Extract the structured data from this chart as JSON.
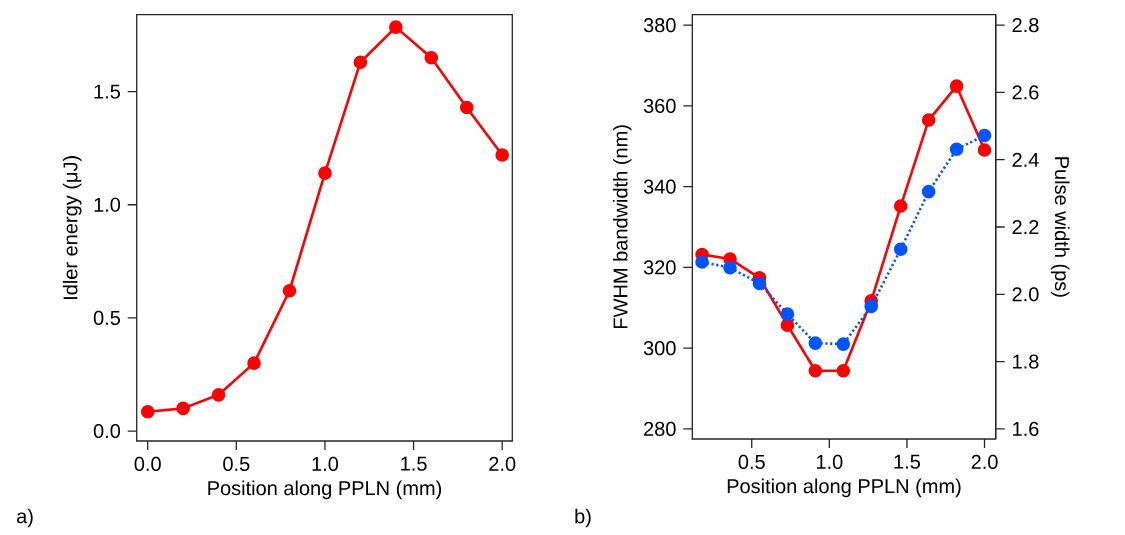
{
  "chart_data": [
    {
      "type": "line",
      "xlabel": "Position along PPLN (mm)",
      "ylabel": "Idler energy (μJ)",
      "marker": "circle",
      "line_style": "solid",
      "x": [
        0.0,
        0.2,
        0.4,
        0.6,
        0.8,
        1.0,
        1.2,
        1.4,
        1.6,
        1.8,
        2.0
      ],
      "series": [
        {
          "color": "#ff0000",
          "values": [
            0.085,
            0.1,
            0.16,
            0.3,
            0.62,
            1.14,
            1.63,
            1.785,
            1.65,
            1.43,
            1.22
          ]
        }
      ],
      "xlim": [
        -0.062,
        2.057
      ],
      "ylim": [
        -0.044,
        1.84
      ],
      "xticks": [
        {
          "value": 0,
          "label": "0.0"
        },
        {
          "value": 0.5,
          "label": "0.5"
        },
        {
          "value": 1,
          "label": "1.0"
        },
        {
          "value": 1.5,
          "label": "1.5"
        },
        {
          "value": 2,
          "label": "2.0"
        }
      ],
      "yticks": [
        {
          "value": 0,
          "label": "0.0"
        },
        {
          "value": 0.5,
          "label": "0.5"
        },
        {
          "value": 1,
          "label": "1.0"
        },
        {
          "value": 1.5,
          "label": "1.5"
        }
      ],
      "annotations": [
        "a)"
      ]
    },
    {
      "type": "line",
      "xlabel": "Position along PPLN (mm)",
      "ylabel": "FWHM bandwidth (nm)",
      "y2label": "Pulse width (ps)",
      "marker": "circle",
      "x": [
        0.18,
        0.36,
        0.55,
        0.73,
        0.91,
        1.09,
        1.27,
        1.46,
        1.64,
        1.82,
        2.0
      ],
      "series": [
        {
          "color": "#ff0000",
          "line_style": "solid",
          "values": [
            323.2,
            322.1,
            317.4,
            305.7,
            294.4,
            294.4,
            311.7,
            335.2,
            356.5,
            364.9,
            349.1
          ]
        },
        {
          "color": "#0055ff",
          "line_style": "dotted",
          "axis": "y2",
          "values": [
            2.096,
            2.079,
            2.032,
            1.941,
            1.855,
            1.852,
            1.964,
            2.134,
            2.305,
            2.431,
            2.472
          ]
        }
      ],
      "xlim": [
        0.117,
        2.072
      ],
      "ylim": [
        277.5,
        382.6
      ],
      "y2lim": [
        1.57,
        2.831
      ],
      "xticks": [
        {
          "value": 0.5,
          "label": "0.5"
        },
        {
          "value": 1,
          "label": "1.0"
        },
        {
          "value": 1.5,
          "label": "1.5"
        },
        {
          "value": 2,
          "label": "2.0"
        }
      ],
      "yticks": [
        280,
        300,
        320,
        340,
        360,
        380
      ],
      "y2ticks": [
        {
          "value": 1.6,
          "label": "1.6"
        },
        {
          "value": 1.8,
          "label": "1.8"
        },
        {
          "value": 2.0,
          "label": "2.0"
        },
        {
          "value": 2.2,
          "label": "2.2"
        },
        {
          "value": 2.4,
          "label": "2.4"
        },
        {
          "value": 2.6,
          "label": "2.6"
        },
        {
          "value": 2.8,
          "label": "2.8"
        }
      ],
      "annotations": [
        "b)"
      ]
    }
  ]
}
